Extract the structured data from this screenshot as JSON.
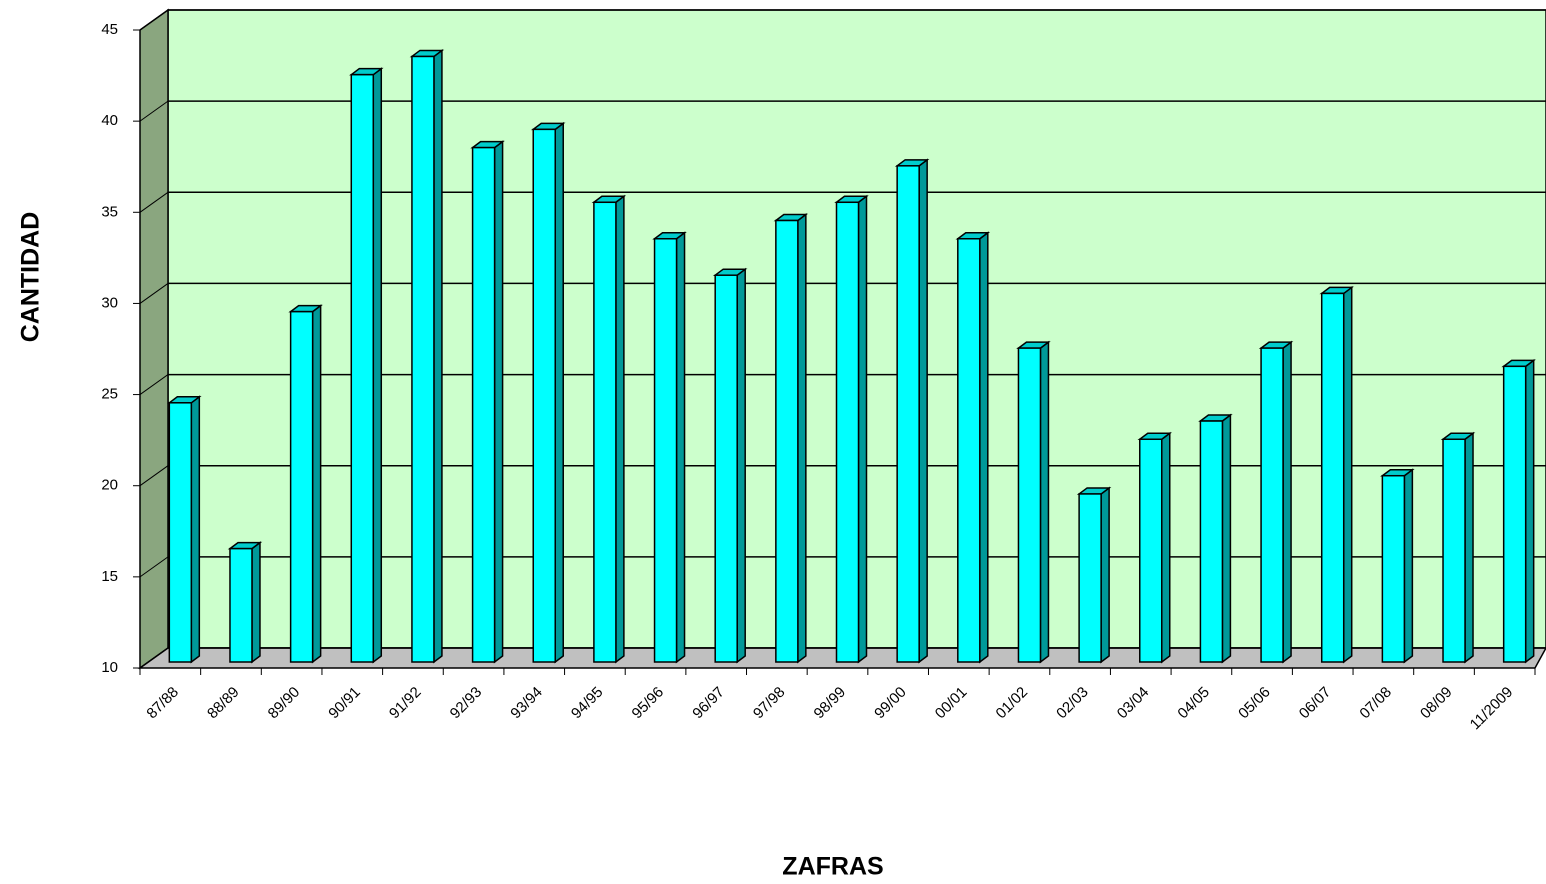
{
  "chart_data": {
    "type": "bar3d",
    "x_label": "ZAFRAS",
    "y_label": "CANTIDAD",
    "categories": [
      "87/88",
      "88/89",
      "89/90",
      "90/91",
      "91/92",
      "92/93",
      "93/94",
      "94/95",
      "95/96",
      "96/97",
      "97/98",
      "98/99",
      "99/00",
      "00/01",
      "01/02",
      "02/03",
      "03/04",
      "04/05",
      "05/06",
      "06/07",
      "07/08",
      "08/09",
      "11/2009"
    ],
    "values": [
      24,
      16,
      29,
      42,
      43,
      38,
      39,
      35,
      33,
      31,
      34,
      35,
      37,
      33,
      27,
      19,
      22,
      23,
      27,
      30,
      20,
      22,
      26
    ],
    "color": "#00ffff",
    "ylim": [
      10,
      45
    ],
    "yticks": [
      10,
      15,
      20,
      25,
      30,
      35,
      40,
      45
    ],
    "grid": true
  }
}
